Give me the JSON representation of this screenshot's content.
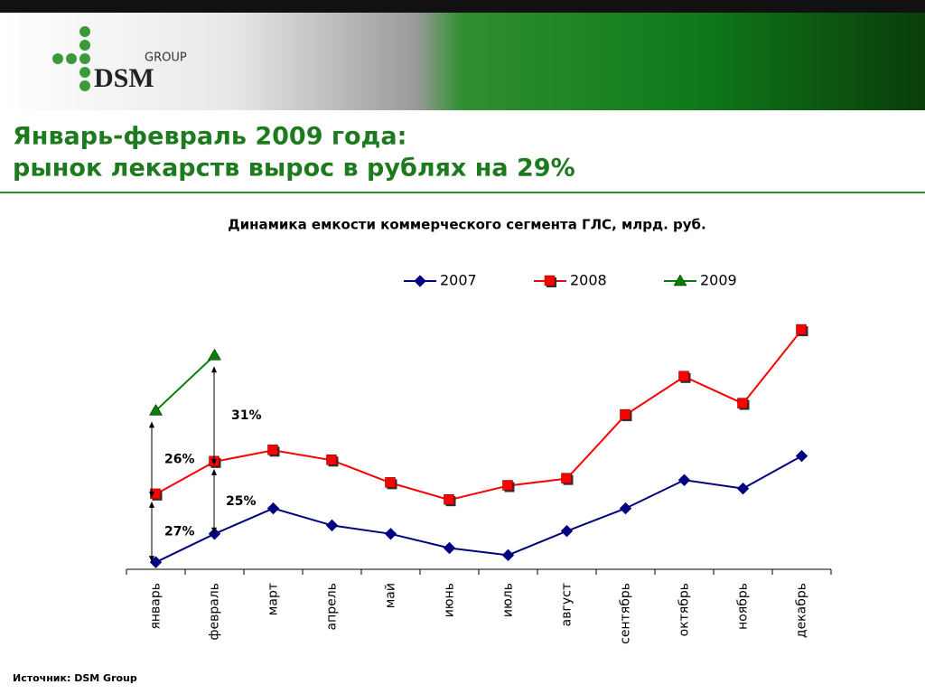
{
  "header": {
    "logo_small": "GROUP",
    "logo_big": "DSM"
  },
  "headline": [
    "Январь-февраль 2009 года:",
    "рынок лекарств вырос в рублях на 29%"
  ],
  "chart_data": {
    "type": "line",
    "title": "Динамика емкости коммерческого сегмента ГЛС, млрд. руб.",
    "categories": [
      "январь",
      "февраль",
      "март",
      "апрель",
      "май",
      "июнь",
      "июль",
      "август",
      "сентябрь",
      "октябрь",
      "ноябрь",
      "декабрь"
    ],
    "series": [
      {
        "name": "2007",
        "color": "#000080",
        "marker": "diamond",
        "values": [
          18.0,
          20.0,
          21.8,
          20.6,
          20.0,
          19.0,
          18.5,
          20.2,
          21.8,
          23.8,
          23.2,
          25.5
        ]
      },
      {
        "name": "2008",
        "color": "#ff0000",
        "marker": "square",
        "values": [
          22.8,
          25.1,
          25.9,
          25.2,
          23.6,
          22.4,
          23.4,
          23.9,
          28.4,
          31.1,
          29.2,
          34.4
        ]
      },
      {
        "name": "2009",
        "color": "#008000",
        "marker": "triangle",
        "values": [
          28.7,
          32.6,
          null,
          null,
          null,
          null,
          null,
          null,
          null,
          null,
          null,
          null
        ]
      }
    ],
    "ylim": [
      17.5,
      36
    ],
    "annotations": [
      "27%",
      "25%",
      "26%",
      "31%"
    ],
    "legend": "top"
  },
  "source": "Источник: DSM Group"
}
